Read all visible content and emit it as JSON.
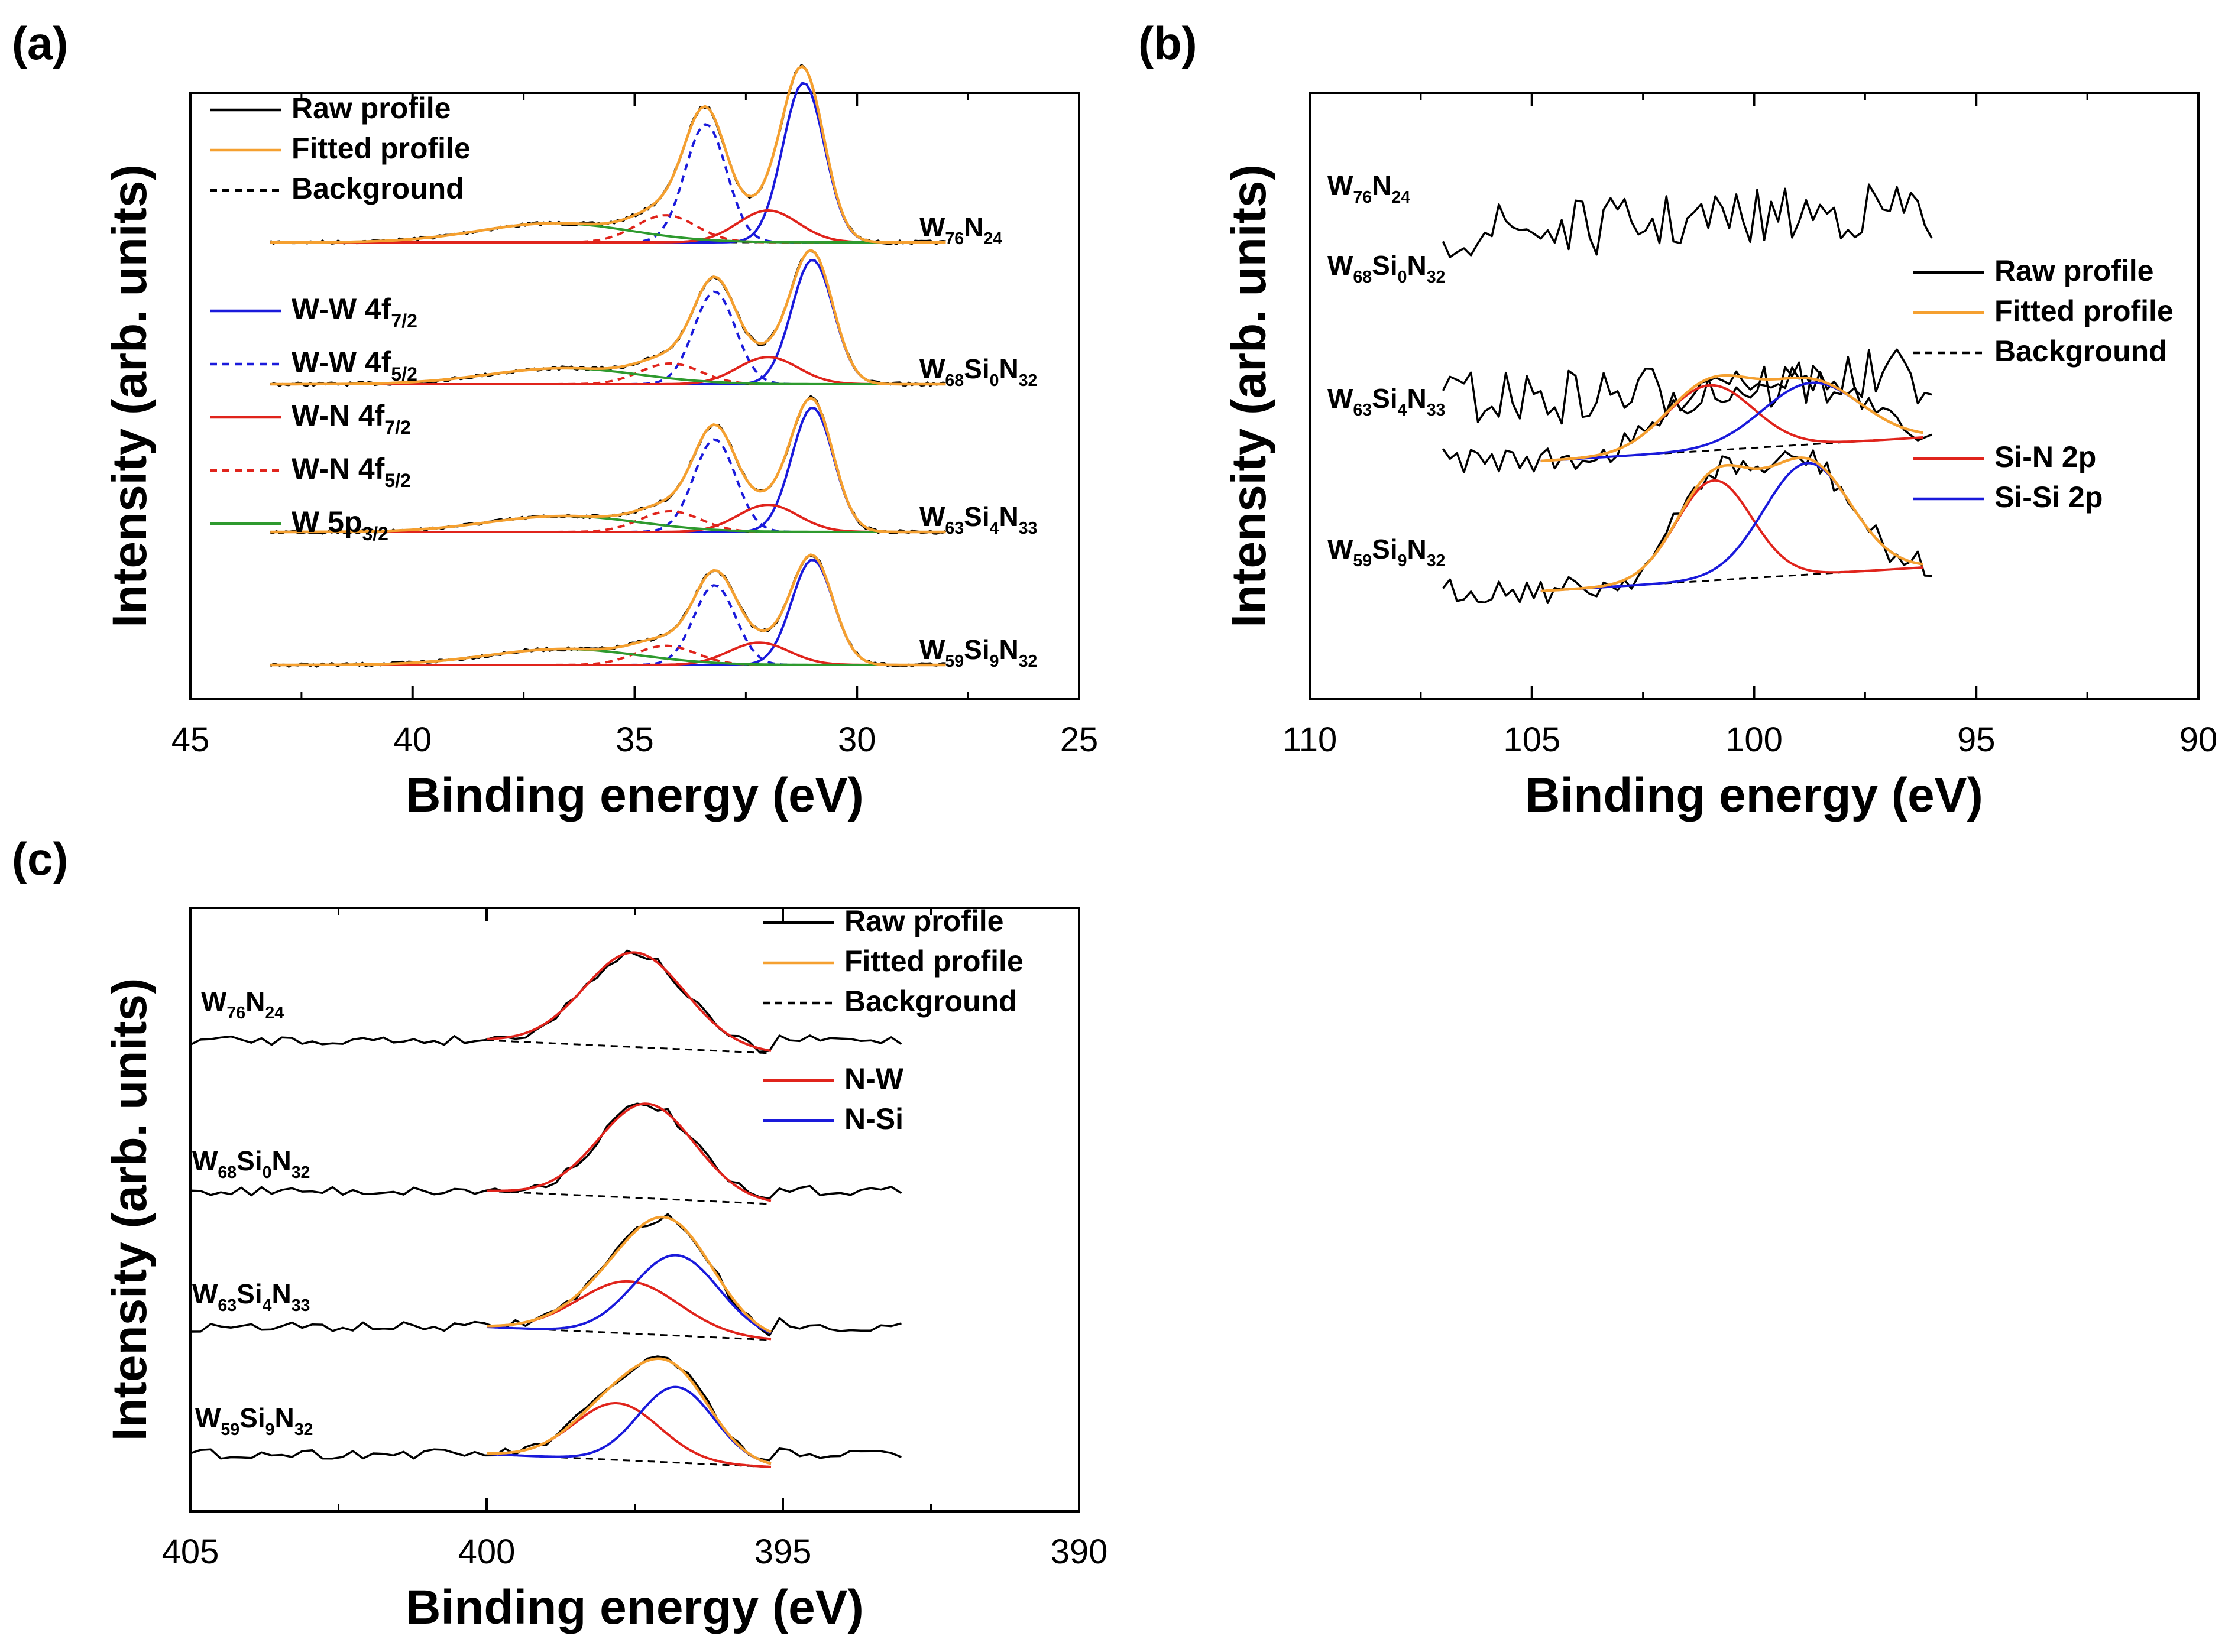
{
  "figure": {
    "description_free": true
  },
  "chart_data": [
    {
      "panel_label": "(a)",
      "type": "line",
      "xlabel": "Binding energy (eV)",
      "ylabel": "Intensity (arb. units)",
      "xlim": [
        45,
        25
      ],
      "xticks": [
        45,
        40,
        35,
        30,
        25
      ],
      "fit_range": [
        43.2,
        28.0
      ],
      "legend": [
        {
          "label": "Raw profile",
          "color": "#000000",
          "dash": false
        },
        {
          "label": "Fitted profile",
          "color": "#f5a030",
          "dash": false
        },
        {
          "label": "Background",
          "color": "#000000",
          "dash": true
        }
      ],
      "component_legend": [
        {
          "label": "W-W 4f7/2",
          "base": "W-W 4f",
          "sub": "7/2",
          "color": "#1a1adb",
          "dash": false
        },
        {
          "label": "W-W 4f5/2",
          "base": "W-W 4f",
          "sub": "5/2",
          "color": "#1a1adb",
          "dash": true
        },
        {
          "label": "W-N 4f7/2",
          "base": "W-N 4f",
          "sub": "7/2",
          "color": "#e0241c",
          "dash": false
        },
        {
          "label": "W-N 4f5/2",
          "base": "W-N 4f",
          "sub": "5/2",
          "color": "#e0241c",
          "dash": true
        },
        {
          "label": "W 5p3/2",
          "base": "W 5p",
          "sub": "3/2",
          "color": "#2e9a2e",
          "dash": false
        }
      ],
      "samples": [
        {
          "label": "W76N24",
          "parts": [
            [
              "W",
              ""
            ],
            [
              "",
              "76"
            ],
            [
              "N",
              ""
            ],
            [
              "",
              "24"
            ]
          ],
          "peaks": [
            {
              "name": "W-W 4f7/2",
              "center": 31.2,
              "height": 1.0,
              "fwhm": 1.1
            },
            {
              "name": "W-W 4f5/2",
              "center": 33.4,
              "height": 0.74,
              "fwhm": 1.1
            },
            {
              "name": "W-N 4f7/2",
              "center": 32.0,
              "height": 0.2,
              "fwhm": 1.6
            },
            {
              "name": "W-N 4f5/2",
              "center": 34.3,
              "height": 0.17,
              "fwhm": 1.6
            },
            {
              "name": "W 5p3/2",
              "center": 36.8,
              "height": 0.12,
              "fwhm": 4.0
            }
          ]
        },
        {
          "label": "W68Si0N32",
          "parts": [
            [
              "W",
              ""
            ],
            [
              "",
              "68"
            ],
            [
              "Si",
              ""
            ],
            [
              "",
              "0"
            ],
            [
              "N",
              ""
            ],
            [
              "",
              "32"
            ]
          ],
          "peaks": [
            {
              "name": "W-W 4f7/2",
              "center": 31.0,
              "height": 0.78,
              "fwhm": 1.1
            },
            {
              "name": "W-W 4f5/2",
              "center": 33.2,
              "height": 0.58,
              "fwhm": 1.1
            },
            {
              "name": "W-N 4f7/2",
              "center": 32.0,
              "height": 0.17,
              "fwhm": 1.6
            },
            {
              "name": "W-N 4f5/2",
              "center": 34.2,
              "height": 0.13,
              "fwhm": 1.6
            },
            {
              "name": "W 5p3/2",
              "center": 36.6,
              "height": 0.1,
              "fwhm": 4.0
            }
          ]
        },
        {
          "label": "W63Si4N33",
          "parts": [
            [
              "W",
              ""
            ],
            [
              "",
              "63"
            ],
            [
              "Si",
              ""
            ],
            [
              "",
              "4"
            ],
            [
              "N",
              ""
            ],
            [
              "",
              "33"
            ]
          ],
          "peaks": [
            {
              "name": "W-W 4f7/2",
              "center": 31.0,
              "height": 0.78,
              "fwhm": 1.1
            },
            {
              "name": "W-W 4f5/2",
              "center": 33.2,
              "height": 0.58,
              "fwhm": 1.1
            },
            {
              "name": "W-N 4f7/2",
              "center": 32.0,
              "height": 0.17,
              "fwhm": 1.6
            },
            {
              "name": "W-N 4f5/2",
              "center": 34.2,
              "height": 0.13,
              "fwhm": 1.6
            },
            {
              "name": "W 5p3/2",
              "center": 36.6,
              "height": 0.1,
              "fwhm": 4.0
            }
          ]
        },
        {
          "label": "W59Si9N32",
          "parts": [
            [
              "W",
              ""
            ],
            [
              "",
              "59"
            ],
            [
              "Si",
              ""
            ],
            [
              "",
              "9"
            ],
            [
              "N",
              ""
            ],
            [
              "",
              "32"
            ]
          ],
          "peaks": [
            {
              "name": "W-W 4f7/2",
              "center": 31.0,
              "height": 0.66,
              "fwhm": 1.1
            },
            {
              "name": "W-W 4f5/2",
              "center": 33.2,
              "height": 0.5,
              "fwhm": 1.1
            },
            {
              "name": "W-N 4f7/2",
              "center": 32.2,
              "height": 0.14,
              "fwhm": 1.6
            },
            {
              "name": "W-N 4f5/2",
              "center": 34.3,
              "height": 0.12,
              "fwhm": 1.6
            },
            {
              "name": "W 5p3/2",
              "center": 36.6,
              "height": 0.1,
              "fwhm": 4.0
            }
          ]
        }
      ]
    },
    {
      "panel_label": "(b)",
      "type": "line",
      "xlabel": "Binding energy (eV)",
      "ylabel": "Intensity (arb. units)",
      "xlim": [
        110,
        90
      ],
      "xticks": [
        110,
        105,
        100,
        95,
        90
      ],
      "raw_range": [
        107.0,
        96.0
      ],
      "fit_range": [
        104.8,
        96.2
      ],
      "legend": [
        {
          "label": "Raw profile",
          "color": "#000000",
          "dash": false
        },
        {
          "label": "Fitted profile",
          "color": "#f5a030",
          "dash": false
        },
        {
          "label": "Background",
          "color": "#000000",
          "dash": true
        }
      ],
      "component_legend": [
        {
          "label": "Si-N 2p",
          "color": "#e0241c",
          "dash": false
        },
        {
          "label": "Si-Si 2p",
          "color": "#1a1adb",
          "dash": false
        }
      ],
      "samples": [
        {
          "label": "W76N24",
          "parts": [
            [
              "W",
              ""
            ],
            [
              "",
              "76"
            ],
            [
              "N",
              ""
            ],
            [
              "",
              "24"
            ]
          ],
          "peaks": []
        },
        {
          "label": "W68Si0N32",
          "parts": [
            [
              "W",
              ""
            ],
            [
              "",
              "68"
            ],
            [
              "Si",
              ""
            ],
            [
              "",
              "0"
            ],
            [
              "N",
              ""
            ],
            [
              "",
              "32"
            ]
          ],
          "peaks": []
        },
        {
          "label": "W63Si4N33",
          "parts": [
            [
              "W",
              ""
            ],
            [
              "",
              "63"
            ],
            [
              "Si",
              ""
            ],
            [
              "",
              "4"
            ],
            [
              "N",
              ""
            ],
            [
              "",
              "33"
            ]
          ],
          "peaks": [
            {
              "name": "Si-N 2p",
              "center": 101.0,
              "height": 0.85,
              "fwhm": 2.3
            },
            {
              "name": "Si-Si 2p",
              "center": 98.7,
              "height": 0.8,
              "fwhm": 2.6
            }
          ]
        },
        {
          "label": "W59Si9N32",
          "parts": [
            [
              "W",
              ""
            ],
            [
              "",
              "59"
            ],
            [
              "Si",
              ""
            ],
            [
              "",
              "9"
            ],
            [
              "N",
              ""
            ],
            [
              "",
              "32"
            ]
          ],
          "peaks": [
            {
              "name": "Si-N 2p",
              "center": 100.9,
              "height": 1.3,
              "fwhm": 2.0
            },
            {
              "name": "Si-Si 2p",
              "center": 98.8,
              "height": 1.45,
              "fwhm": 2.3
            }
          ]
        }
      ]
    },
    {
      "panel_label": "(c)",
      "type": "line",
      "xlabel": "Binding energy (eV)",
      "ylabel": "Intensity (arb. units)",
      "xlim": [
        405,
        390
      ],
      "xticks": [
        405,
        400,
        395,
        390
      ],
      "raw_range": [
        405.0,
        393.0
      ],
      "fit_range": [
        400.0,
        395.2
      ],
      "legend": [
        {
          "label": "Raw profile",
          "color": "#000000",
          "dash": false
        },
        {
          "label": "Fitted profile",
          "color": "#f5a030",
          "dash": false
        },
        {
          "label": "Background",
          "color": "#000000",
          "dash": true
        }
      ],
      "component_legend": [
        {
          "label": "N-W",
          "color": "#e0241c",
          "dash": false
        },
        {
          "label": "N-Si",
          "color": "#1a1adb",
          "dash": false
        }
      ],
      "samples": [
        {
          "label": "W76N24",
          "parts": [
            [
              "W",
              ""
            ],
            [
              "",
              "76"
            ],
            [
              "N",
              ""
            ],
            [
              "",
              "24"
            ]
          ],
          "peaks": [
            {
              "name": "N-W",
              "center": 397.5,
              "height": 1.0,
              "fwhm": 2.0
            }
          ]
        },
        {
          "label": "W68Si0N32",
          "parts": [
            [
              "W",
              ""
            ],
            [
              "",
              "68"
            ],
            [
              "Si",
              ""
            ],
            [
              "",
              "0"
            ],
            [
              "N",
              ""
            ],
            [
              "",
              "32"
            ]
          ],
          "peaks": [
            {
              "name": "N-W",
              "center": 397.3,
              "height": 1.0,
              "fwhm": 1.9
            }
          ]
        },
        {
          "label": "W63Si4N33",
          "parts": [
            [
              "W",
              ""
            ],
            [
              "",
              "63"
            ],
            [
              "Si",
              ""
            ],
            [
              "",
              "4"
            ],
            [
              "N",
              ""
            ],
            [
              "",
              "33"
            ]
          ],
          "peaks": [
            {
              "name": "N-W",
              "center": 397.6,
              "height": 0.55,
              "fwhm": 2.0
            },
            {
              "name": "N-Si",
              "center": 396.8,
              "height": 0.85,
              "fwhm": 1.7
            }
          ]
        },
        {
          "label": "W59Si9N32",
          "parts": [
            [
              "W",
              ""
            ],
            [
              "",
              "59"
            ],
            [
              "Si",
              ""
            ],
            [
              "",
              "9"
            ],
            [
              "N",
              ""
            ],
            [
              "",
              "32"
            ]
          ],
          "peaks": [
            {
              "name": "N-W",
              "center": 397.8,
              "height": 0.6,
              "fwhm": 1.7
            },
            {
              "name": "N-Si",
              "center": 396.8,
              "height": 0.8,
              "fwhm": 1.5
            }
          ]
        }
      ]
    }
  ]
}
